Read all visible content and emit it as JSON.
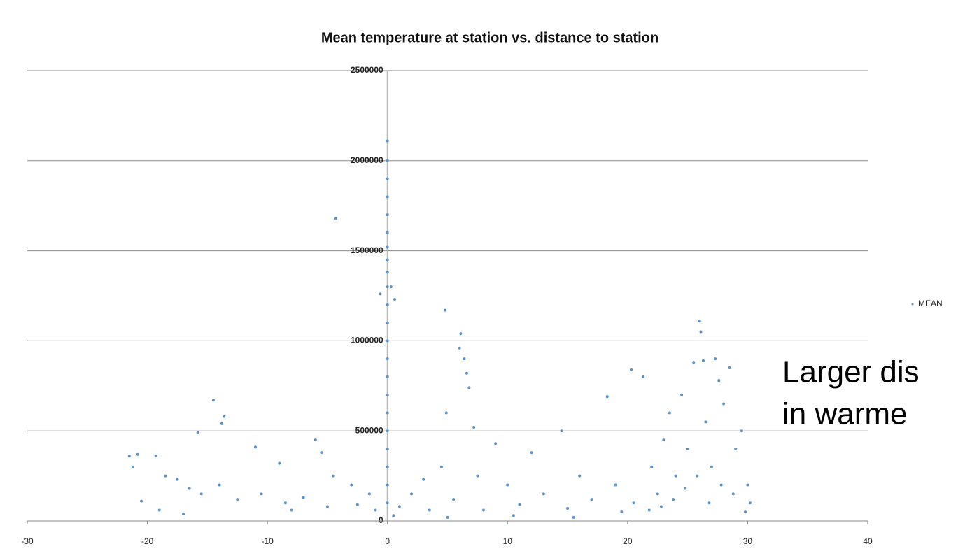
{
  "chart_data": {
    "type": "scatter",
    "title": "Mean temperature at station vs. distance to station",
    "annotation": [
      "Larger dis",
      "in warme"
    ],
    "legend": "right",
    "grid": true,
    "xlim": [
      -30,
      40
    ],
    "xticks": [
      -30,
      -20,
      -10,
      0,
      10,
      20,
      30,
      40
    ],
    "ylim": [
      0,
      2500000
    ],
    "yticks": [
      0,
      500000,
      1000000,
      1500000,
      2000000,
      2500000
    ],
    "series": [
      {
        "name": "MEAN",
        "color": "#5b93c7",
        "x": [
          0,
          0,
          0,
          0,
          0,
          0,
          0,
          0,
          0,
          0,
          0,
          0,
          0,
          0,
          0,
          0,
          0,
          0,
          0,
          0,
          0,
          0,
          -4.3,
          -0.6,
          0.3,
          0.6,
          4.8,
          6.1,
          6,
          6.4,
          6.6,
          6.8,
          4.9,
          7.2,
          -14.5,
          -13.6,
          -13.8,
          -15.8,
          -21.5,
          -20.8,
          -21.2,
          -20.5,
          -19.3,
          -18.5,
          -17.5,
          -16.5,
          -15.5,
          -14,
          -12.5,
          -11,
          -10.5,
          -9,
          -8.5,
          -7,
          -6,
          -5.5,
          -4.5,
          -3,
          -2.5,
          -1.5,
          -1,
          1,
          2,
          3,
          3.5,
          4.5,
          5.5,
          7.5,
          8,
          9,
          10,
          11,
          12,
          13,
          14.5,
          15,
          16,
          17,
          18.3,
          19,
          20.3,
          21.3,
          22,
          22.5,
          23,
          23.5,
          24,
          24.5,
          25,
          25.5,
          26,
          26.1,
          26.3,
          26.5,
          27,
          27.3,
          27.6,
          28,
          28.5,
          29,
          29.5,
          30,
          30.2,
          29.8,
          28.8,
          27.8,
          26.8,
          25.8,
          24.8,
          23.8,
          22.8,
          21.8,
          20.5,
          -17,
          -19,
          -8,
          -5,
          0.5,
          5,
          10.5,
          15.5,
          19.5
        ],
        "values": [
          2110000,
          2000000,
          1900000,
          1800000,
          1700000,
          1600000,
          1520000,
          1450000,
          1380000,
          1300000,
          1200000,
          1100000,
          1000000,
          900000,
          800000,
          700000,
          600000,
          500000,
          400000,
          300000,
          200000,
          100000,
          1680000,
          1260000,
          1300000,
          1230000,
          1170000,
          1040000,
          960000,
          900000,
          820000,
          740000,
          600000,
          520000,
          670000,
          580000,
          540000,
          490000,
          360000,
          370000,
          300000,
          110000,
          360000,
          250000,
          230000,
          180000,
          150000,
          200000,
          120000,
          410000,
          150000,
          320000,
          100000,
          130000,
          450000,
          380000,
          250000,
          200000,
          90000,
          150000,
          60000,
          80000,
          150000,
          230000,
          60000,
          300000,
          120000,
          250000,
          60000,
          430000,
          200000,
          90000,
          380000,
          150000,
          500000,
          70000,
          250000,
          120000,
          690000,
          200000,
          840000,
          800000,
          300000,
          150000,
          450000,
          600000,
          250000,
          700000,
          400000,
          880000,
          1110000,
          1050000,
          890000,
          550000,
          300000,
          900000,
          780000,
          650000,
          850000,
          400000,
          500000,
          200000,
          100000,
          50000,
          150000,
          200000,
          100000,
          250000,
          180000,
          120000,
          80000,
          60000,
          100000,
          40000,
          60000,
          60000,
          80000,
          30000,
          20000,
          30000,
          20000,
          50000
        ]
      }
    ]
  }
}
